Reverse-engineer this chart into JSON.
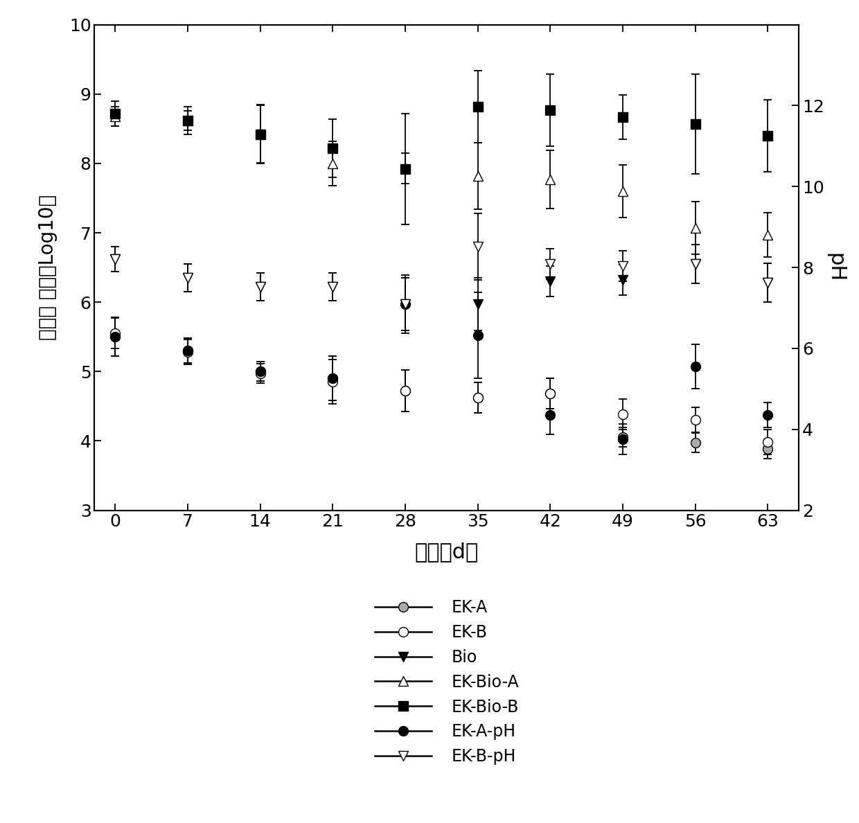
{
  "x": [
    0,
    7,
    14,
    21,
    28,
    35,
    42,
    49,
    56,
    63
  ],
  "EK_A": [
    5.5,
    5.3,
    5.0,
    4.9,
    4.72,
    4.62,
    4.68,
    4.05,
    3.97,
    3.88
  ],
  "EK_A_err": [
    0.28,
    0.18,
    0.14,
    0.32,
    0.3,
    0.22,
    0.22,
    0.14,
    0.14,
    0.14
  ],
  "EK_B": [
    5.55,
    5.28,
    4.97,
    4.85,
    4.72,
    4.62,
    4.68,
    4.38,
    4.3,
    3.98
  ],
  "EK_B_err": [
    0.22,
    0.18,
    0.14,
    0.32,
    0.3,
    0.22,
    0.22,
    0.22,
    0.18,
    0.18
  ],
  "Bio": [
    6.62,
    6.35,
    6.22,
    6.22,
    5.97,
    5.97,
    6.3,
    6.32,
    6.55,
    6.28
  ],
  "Bio_err": [
    0.18,
    0.2,
    0.2,
    0.2,
    0.38,
    0.38,
    0.22,
    0.22,
    0.28,
    0.28
  ],
  "EK_Bio_A": [
    8.68,
    8.62,
    8.43,
    8.0,
    7.93,
    7.82,
    7.77,
    7.6,
    7.07,
    6.97
  ],
  "EK_Bio_A_err": [
    0.14,
    0.14,
    0.42,
    0.32,
    0.22,
    0.48,
    0.42,
    0.38,
    0.38,
    0.32
  ],
  "EK_Bio_B": [
    8.72,
    8.62,
    8.42,
    8.22,
    7.92,
    8.82,
    8.77,
    8.67,
    8.57,
    8.4
  ],
  "EK_Bio_B_err": [
    0.18,
    0.2,
    0.42,
    0.42,
    0.8,
    0.52,
    0.52,
    0.32,
    0.72,
    0.52
  ],
  "EK_A_pH": [
    5.5,
    5.3,
    5.0,
    4.9,
    5.97,
    5.52,
    4.37,
    4.02,
    5.07,
    4.37
  ],
  "EK_A_pH_err": [
    0.28,
    0.18,
    0.14,
    0.32,
    0.42,
    0.62,
    0.28,
    0.22,
    0.32,
    0.18
  ],
  "EK_B_pH": [
    6.62,
    6.35,
    6.22,
    6.22,
    5.97,
    6.8,
    6.55,
    6.52,
    6.55,
    6.28
  ],
  "EK_B_pH_err": [
    0.18,
    0.2,
    0.2,
    0.2,
    0.38,
    0.48,
    0.22,
    0.22,
    0.28,
    0.28
  ],
  "ylabel_left": "微生物 数量（Log10）",
  "ylabel_right": "pH",
  "xlabel": "时间（d）",
  "ylim_left": [
    3,
    10
  ],
  "ylim_right": [
    2,
    14
  ],
  "yticks_left": [
    3,
    4,
    5,
    6,
    7,
    8,
    9,
    10
  ],
  "yticks_right": [
    2,
    4,
    6,
    8,
    10,
    12
  ],
  "xticks": [
    0,
    7,
    14,
    21,
    28,
    35,
    42,
    49,
    56,
    63
  ],
  "background_color": "#ffffff"
}
